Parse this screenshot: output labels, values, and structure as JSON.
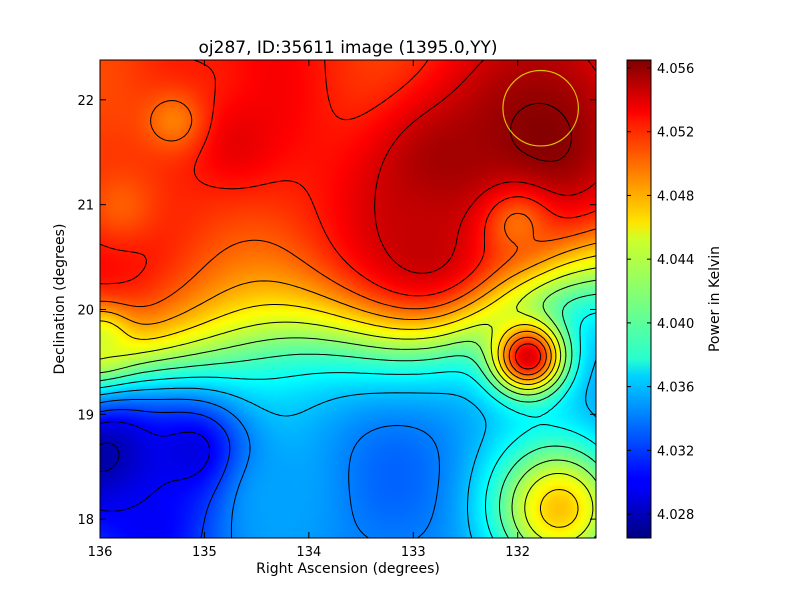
{
  "chart_data": {
    "type": "heatmap",
    "title": "oj287, ID:35611 image (1395.0,YY)",
    "xlabel": "Right Ascension (degrees)",
    "ylabel": "Declination (degrees)",
    "colorbar_label": "Power in Kelvin",
    "xlim": [
      136.0,
      131.25
    ],
    "ylim": [
      17.82,
      22.38
    ],
    "x_ticks": [
      136,
      135,
      134,
      133,
      132
    ],
    "x_tick_labels": [
      "136",
      "135",
      "134",
      "133",
      "132"
    ],
    "y_ticks": [
      18,
      19,
      20,
      21,
      22
    ],
    "y_tick_labels": [
      "18",
      "19",
      "20",
      "21",
      "22"
    ],
    "colorbar_range": [
      4.0265,
      4.0565
    ],
    "colorbar_ticks": [
      4.028,
      4.032,
      4.036,
      4.04,
      4.044,
      4.048,
      4.052,
      4.056
    ],
    "colorbar_tick_labels": [
      "4.028",
      "4.032",
      "4.036",
      "4.040",
      "4.044",
      "4.048",
      "4.052",
      "4.056"
    ],
    "colormap": "jet",
    "contours": true,
    "grid": false,
    "marker_circle": {
      "ra": 131.78,
      "dec": 21.92,
      "radius_deg": 0.36,
      "color": "#d8c000"
    },
    "features": [
      {
        "ra": 131.8,
        "dec": 21.6,
        "value": 4.0565,
        "spread": 0.9
      },
      {
        "ra": 132.7,
        "dec": 21.3,
        "value": 4.056,
        "spread": 0.7
      },
      {
        "ra": 132.9,
        "dec": 20.6,
        "value": 4.0545,
        "spread": 0.8
      },
      {
        "ra": 135.0,
        "dec": 22.2,
        "value": 4.052,
        "spread": 0.6
      },
      {
        "ra": 134.7,
        "dec": 21.6,
        "value": 4.0535,
        "spread": 0.35
      },
      {
        "ra": 135.3,
        "dec": 21.8,
        "value": 4.049,
        "spread": 0.3
      },
      {
        "ra": 131.9,
        "dec": 19.55,
        "value": 4.054,
        "spread": 0.35
      },
      {
        "ra": 132.0,
        "dec": 20.8,
        "value": 4.0495,
        "spread": 0.35
      },
      {
        "ra": 135.8,
        "dec": 21.0,
        "value": 4.05,
        "spread": 0.4
      },
      {
        "ra": 135.9,
        "dec": 18.55,
        "value": 4.027,
        "spread": 0.6
      },
      {
        "ra": 135.1,
        "dec": 18.6,
        "value": 4.029,
        "spread": 0.55
      },
      {
        "ra": 135.5,
        "dec": 17.9,
        "value": 4.03,
        "spread": 0.6
      },
      {
        "ra": 134.3,
        "dec": 18.2,
        "value": 4.035,
        "spread": 0.5
      },
      {
        "ra": 131.6,
        "dec": 18.1,
        "value": 4.047,
        "spread": 0.6
      },
      {
        "ra": 136.0,
        "dec": 19.7,
        "value": 4.044,
        "spread": 0.3
      }
    ]
  }
}
